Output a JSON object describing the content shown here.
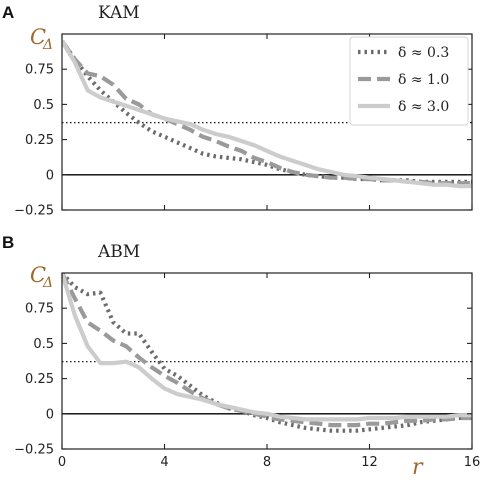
{
  "figure": {
    "panel_labels": [
      "A",
      "B"
    ],
    "x_axis_label": "r",
    "y_axis_label_main": "C",
    "y_axis_label_sub": "Δ"
  },
  "chart_data": [
    {
      "panel": "A",
      "type": "line",
      "title": "KAM",
      "xlabel": "r",
      "ylabel": "CΔ",
      "xlim": [
        0,
        16
      ],
      "ylim": [
        -0.25,
        1.0
      ],
      "xticks": [
        0,
        4,
        8,
        12,
        16
      ],
      "xtick_labels": [
        "",
        "",
        "",
        "",
        ""
      ],
      "yticks": [
        -0.25,
        0,
        0.25,
        0.5,
        0.75
      ],
      "ytick_labels": [
        "−0.25",
        "0",
        "0.25",
        "0.5",
        "0.75"
      ],
      "reference_lines": [
        {
          "y": 0,
          "style": "solid",
          "color": "#000000"
        },
        {
          "y": 0.37,
          "style": "dotted",
          "color": "#000000"
        }
      ],
      "legend": {
        "position": "top-right",
        "entries": [
          "δ ≈ 0.3",
          "δ ≈ 1.0",
          "δ ≈ 3.0"
        ]
      },
      "series": [
        {
          "name": "δ ≈ 0.3",
          "style": "dotted",
          "color": "#6b6b6b",
          "x": [
            0,
            0.5,
            1,
            1.5,
            2,
            2.5,
            3,
            3.5,
            4,
            4.5,
            5,
            5.5,
            6,
            6.5,
            7,
            7.5,
            8,
            8.5,
            9,
            9.5,
            10,
            10.5,
            11,
            11.5,
            12,
            12.5,
            13,
            13.5,
            14,
            14.5,
            15,
            15.5,
            16
          ],
          "y": [
            0.95,
            0.82,
            0.7,
            0.6,
            0.52,
            0.44,
            0.37,
            0.31,
            0.27,
            0.23,
            0.19,
            0.15,
            0.13,
            0.12,
            0.11,
            0.09,
            0.07,
            0.04,
            0.02,
            0.0,
            -0.01,
            -0.02,
            -0.02,
            -0.03,
            -0.03,
            -0.04,
            -0.04,
            -0.04,
            -0.05,
            -0.05,
            -0.05,
            -0.05,
            -0.05
          ]
        },
        {
          "name": "δ ≈ 1.0",
          "style": "dashed",
          "color": "#9a9a9a",
          "x": [
            0,
            0.5,
            1,
            1.5,
            2,
            2.5,
            3,
            3.5,
            4,
            4.5,
            5,
            5.5,
            6,
            6.5,
            7,
            7.5,
            8,
            8.5,
            9,
            9.5,
            10,
            10.5,
            11,
            11.5,
            12,
            12.5,
            13,
            13.5,
            14,
            14.5,
            15,
            15.5,
            16
          ],
          "y": [
            0.95,
            0.82,
            0.72,
            0.7,
            0.64,
            0.54,
            0.5,
            0.43,
            0.4,
            0.36,
            0.32,
            0.27,
            0.24,
            0.2,
            0.17,
            0.12,
            0.09,
            0.05,
            0.02,
            0.0,
            -0.01,
            -0.02,
            -0.02,
            -0.03,
            -0.03,
            -0.04,
            -0.04,
            -0.05,
            -0.05,
            -0.06,
            -0.06,
            -0.06,
            -0.06
          ]
        },
        {
          "name": "δ ≈ 3.0",
          "style": "solid",
          "color": "#cccccc",
          "x": [
            0,
            0.5,
            1,
            1.5,
            2,
            2.5,
            3,
            3.5,
            4,
            4.5,
            5,
            5.5,
            6,
            6.5,
            7,
            7.5,
            8,
            8.5,
            9,
            9.5,
            10,
            10.5,
            11,
            11.5,
            12,
            12.5,
            13,
            13.5,
            14,
            14.5,
            15,
            15.5,
            16
          ],
          "y": [
            0.95,
            0.8,
            0.6,
            0.55,
            0.52,
            0.49,
            0.46,
            0.43,
            0.4,
            0.38,
            0.36,
            0.32,
            0.29,
            0.27,
            0.24,
            0.21,
            0.17,
            0.13,
            0.1,
            0.07,
            0.04,
            0.02,
            0.0,
            -0.01,
            -0.02,
            -0.03,
            -0.04,
            -0.05,
            -0.06,
            -0.07,
            -0.07,
            -0.08,
            -0.08
          ]
        }
      ]
    },
    {
      "panel": "B",
      "type": "line",
      "title": "ABM",
      "xlabel": "r",
      "ylabel": "CΔ",
      "xlim": [
        0,
        16
      ],
      "ylim": [
        -0.25,
        1.0
      ],
      "xticks": [
        0,
        4,
        8,
        12,
        16
      ],
      "xtick_labels": [
        "0",
        "4",
        "8",
        "12",
        "16"
      ],
      "yticks": [
        -0.25,
        0,
        0.25,
        0.5,
        0.75
      ],
      "ytick_labels": [
        "−0.25",
        "0",
        "0.25",
        "0.5",
        "0.75"
      ],
      "reference_lines": [
        {
          "y": 0,
          "style": "solid",
          "color": "#000000"
        },
        {
          "y": 0.37,
          "style": "dotted",
          "color": "#000000"
        }
      ],
      "series": [
        {
          "name": "δ ≈ 0.3",
          "style": "dotted",
          "color": "#6b6b6b",
          "x": [
            0,
            0.5,
            1,
            1.5,
            2,
            2.5,
            3,
            3.5,
            4,
            4.5,
            5,
            5.5,
            6,
            6.5,
            7,
            7.5,
            8,
            8.5,
            9,
            9.5,
            10,
            10.5,
            11,
            11.5,
            12,
            12.5,
            13,
            13.5,
            14,
            14.5,
            15,
            15.5,
            16
          ],
          "y": [
            1.0,
            0.9,
            0.85,
            0.86,
            0.65,
            0.57,
            0.57,
            0.44,
            0.32,
            0.27,
            0.2,
            0.13,
            0.08,
            0.04,
            0.02,
            -0.01,
            -0.03,
            -0.06,
            -0.08,
            -0.1,
            -0.11,
            -0.12,
            -0.12,
            -0.12,
            -0.11,
            -0.1,
            -0.09,
            -0.08,
            -0.06,
            -0.05,
            -0.04,
            -0.03,
            -0.02
          ]
        },
        {
          "name": "δ ≈ 1.0",
          "style": "dashed",
          "color": "#9a9a9a",
          "x": [
            0,
            0.5,
            1,
            1.5,
            2,
            2.5,
            3,
            3.5,
            4,
            4.5,
            5,
            5.5,
            6,
            6.5,
            7,
            7.5,
            8,
            8.5,
            9,
            9.5,
            10,
            10.5,
            11,
            11.5,
            12,
            12.5,
            13,
            13.5,
            14,
            14.5,
            15,
            15.5,
            16
          ],
          "y": [
            1.0,
            0.82,
            0.65,
            0.59,
            0.52,
            0.48,
            0.4,
            0.33,
            0.27,
            0.22,
            0.16,
            0.11,
            0.07,
            0.04,
            0.02,
            0.0,
            -0.02,
            -0.04,
            -0.05,
            -0.06,
            -0.07,
            -0.08,
            -0.08,
            -0.08,
            -0.07,
            -0.07,
            -0.06,
            -0.05,
            -0.05,
            -0.04,
            -0.04,
            -0.03,
            -0.03
          ]
        },
        {
          "name": "δ ≈ 3.0",
          "style": "solid",
          "color": "#cccccc",
          "x": [
            0,
            0.5,
            1,
            1.5,
            2,
            2.5,
            3,
            3.5,
            4,
            4.5,
            5,
            5.5,
            6,
            6.5,
            7,
            7.5,
            8,
            8.5,
            9,
            9.5,
            10,
            10.5,
            11,
            11.5,
            12,
            12.5,
            13,
            13.5,
            14,
            14.5,
            15,
            15.5,
            16
          ],
          "y": [
            1.0,
            0.7,
            0.48,
            0.36,
            0.36,
            0.37,
            0.33,
            0.25,
            0.18,
            0.14,
            0.12,
            0.1,
            0.07,
            0.05,
            0.03,
            0.01,
            0.0,
            -0.02,
            -0.03,
            -0.04,
            -0.04,
            -0.04,
            -0.04,
            -0.04,
            -0.03,
            -0.03,
            -0.03,
            -0.02,
            -0.02,
            -0.02,
            -0.02,
            -0.01,
            -0.01
          ]
        }
      ]
    }
  ]
}
